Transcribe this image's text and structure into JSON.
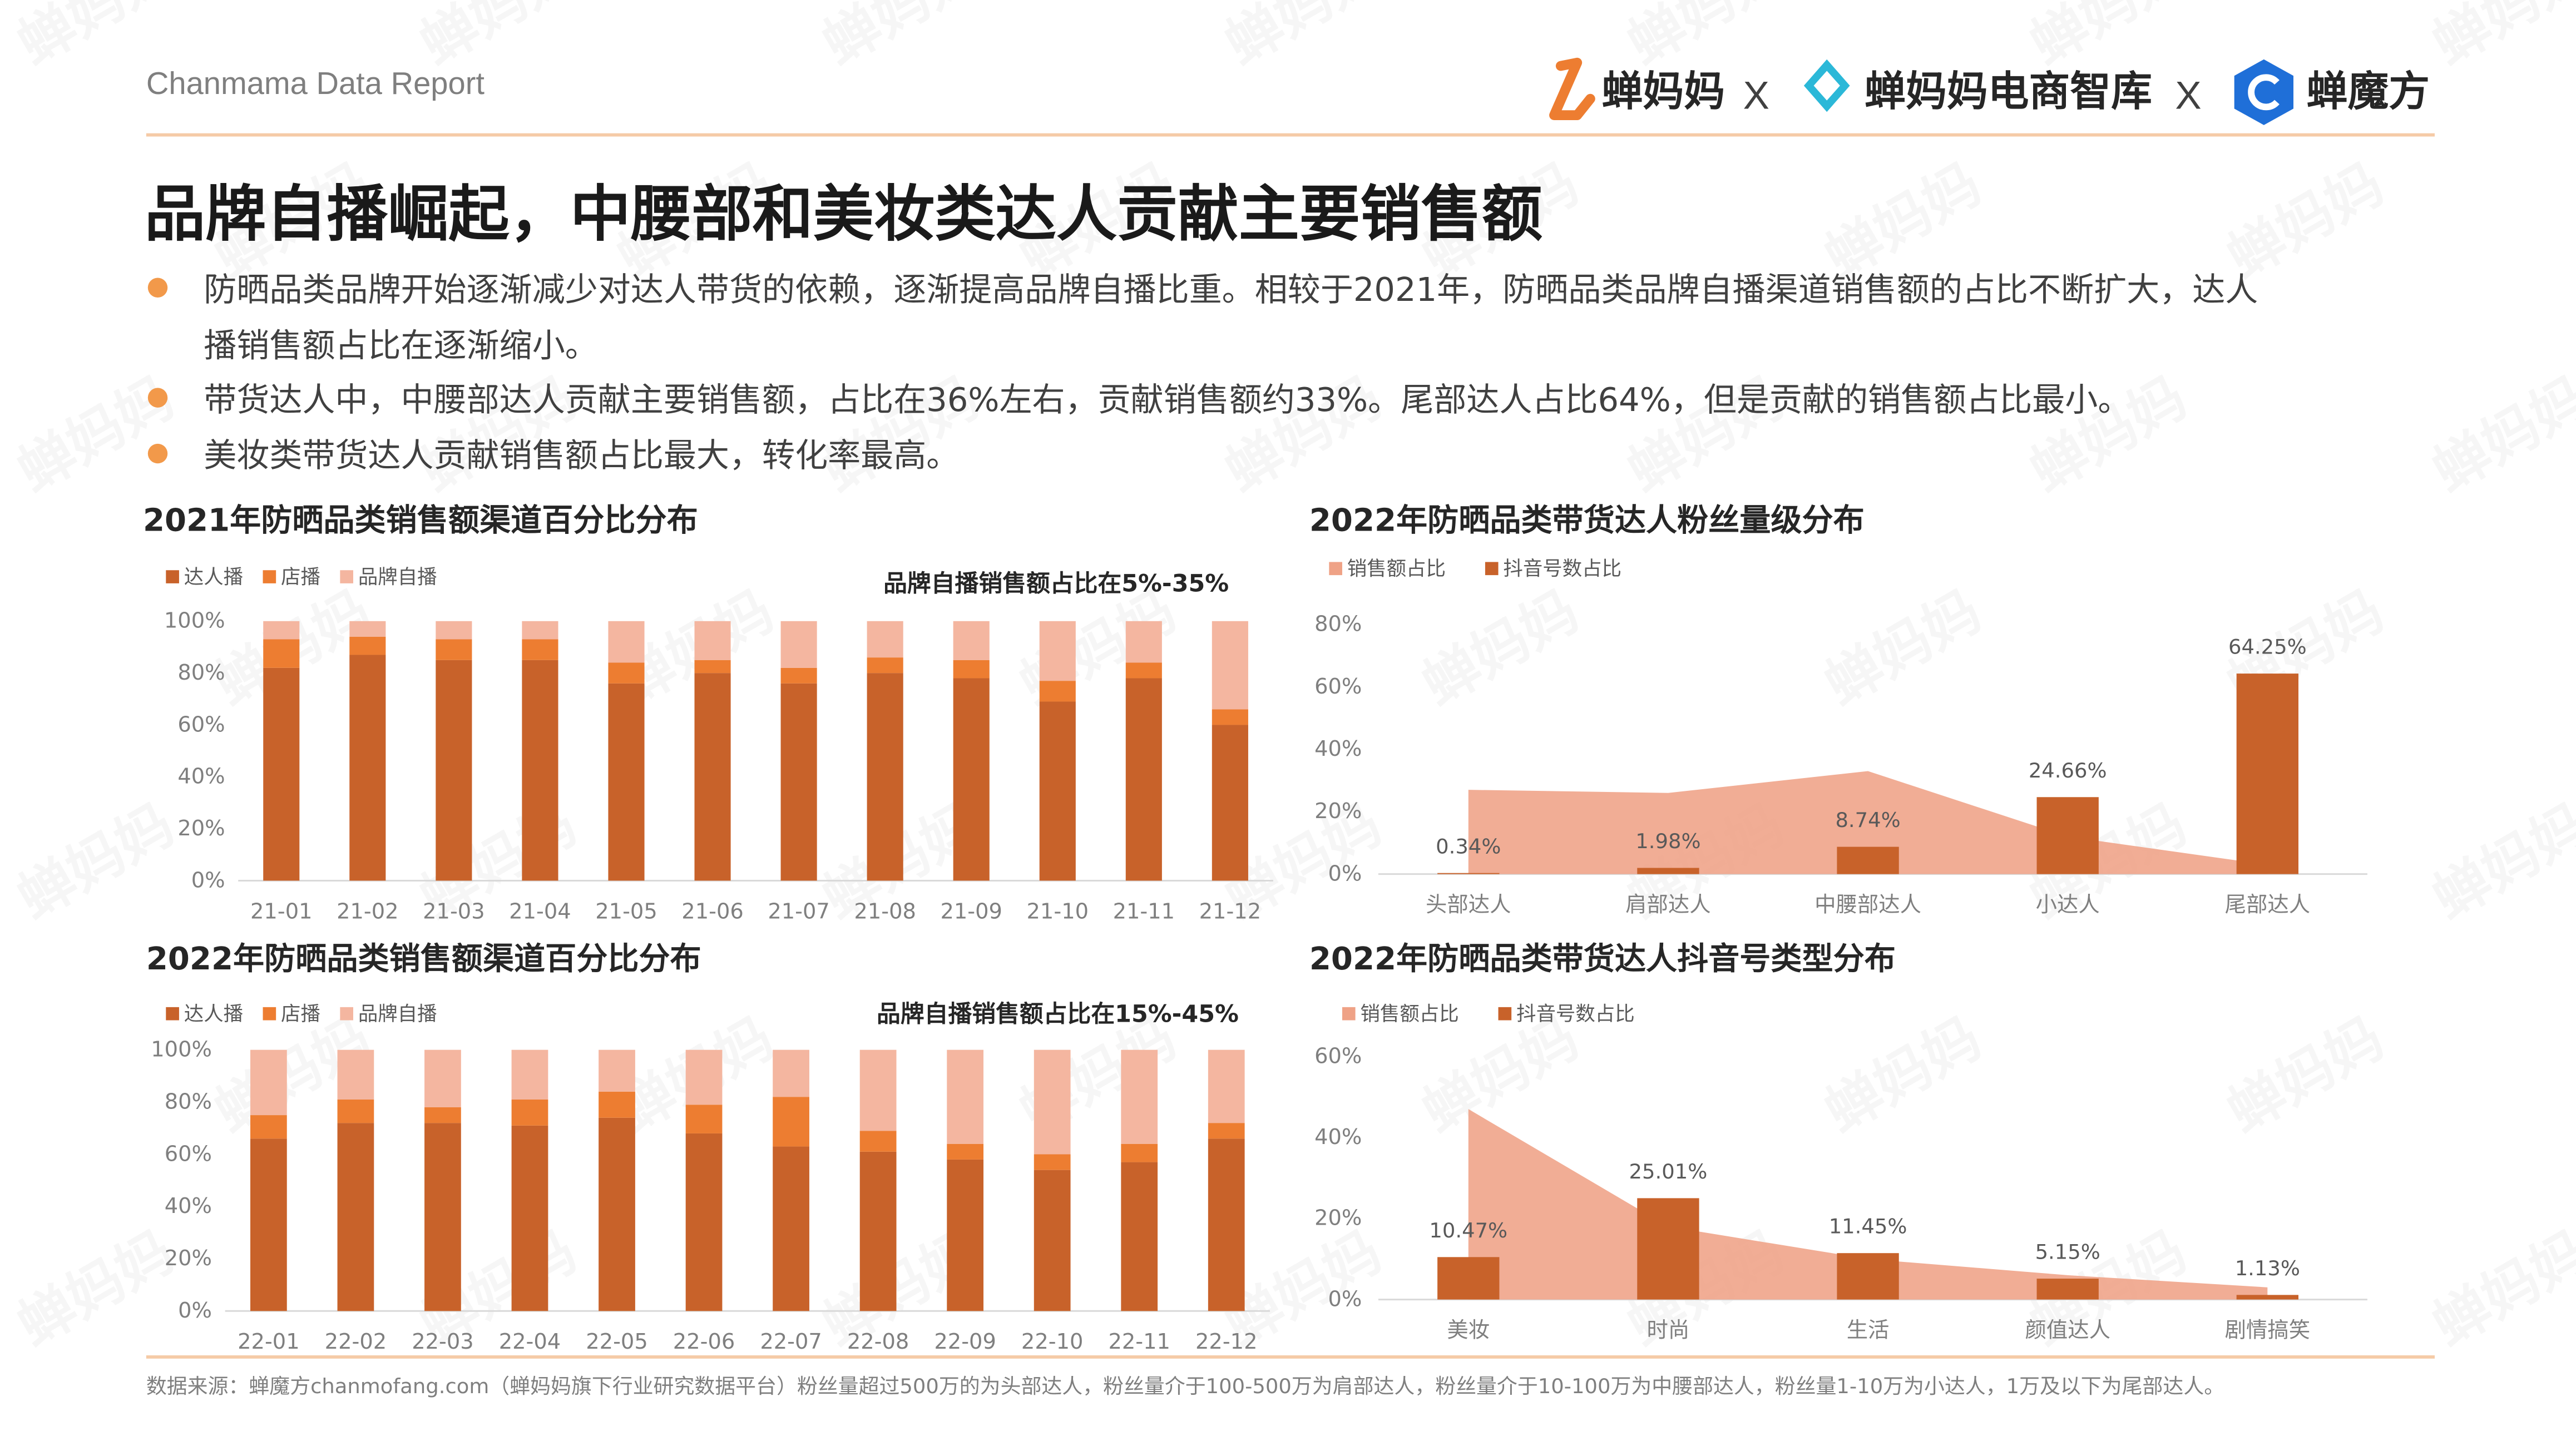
{
  "header": {
    "report_label": "Chanmama Data Report",
    "brands": [
      "蝉妈妈",
      "蝉妈妈电商智库",
      "蝉魔方"
    ],
    "separator": "X"
  },
  "title": "品牌自播崛起，中腰部和美妆类达人贡献主要销售额",
  "bullets": [
    [
      "防晒品类品牌开始逐渐减少对达人带货的依赖，逐渐提高品牌自播比重。相较于2021年，防晒品类品牌自播渠道销售额的占比不断扩大，达人",
      "播销售额占比在逐渐缩小。"
    ],
    [
      "带货达人中，中腰部达人贡献主要销售额，占比在36%左右，贡献销售额约33%。尾部达人占比64%，但是贡献的销售额占比最小。"
    ],
    [
      "美妆类带货达人贡献销售额占比最大，转化率最高。"
    ]
  ],
  "footer": "数据来源：蝉魔方chanmofang.com（蝉妈妈旗下行业研究数据平台）粉丝量超过500万的为头部达人，粉丝量介于100-500万为肩部达人，粉丝量介于10-100万为中腰部达人，粉丝量1-10万为小达人，1万及以下为尾部达人。",
  "watermark": "蝉妈妈",
  "colors": {
    "accent": "#F2994A",
    "dark_orange": "#C8622A",
    "mid_orange": "#ED7D31",
    "light_salmon": "#F4B6A0",
    "area_salmon": "#EFA286",
    "text": "#262626",
    "muted": "#595959",
    "axis": "#7f7f7f",
    "rule": "#F5CBA7"
  },
  "chart_data": [
    {
      "id": "c1",
      "type": "bar",
      "stacked": true,
      "title": "2021年防晒品类销售额渠道百分比分布",
      "annotation": "品牌自播销售额占比在5%-35%",
      "categories": [
        "21-01",
        "21-02",
        "21-03",
        "21-04",
        "21-05",
        "21-06",
        "21-07",
        "21-08",
        "21-09",
        "21-10",
        "21-11",
        "21-12"
      ],
      "series": [
        {
          "name": "达人播",
          "values": [
            82,
            87,
            85,
            85,
            76,
            80,
            76,
            80,
            78,
            69,
            78,
            60
          ]
        },
        {
          "name": "店播",
          "values": [
            11,
            7,
            8,
            8,
            8,
            5,
            6,
            6,
            7,
            8,
            6,
            6
          ]
        },
        {
          "name": "品牌自播",
          "values": [
            7,
            6,
            7,
            7,
            16,
            15,
            18,
            14,
            15,
            23,
            16,
            34
          ]
        }
      ],
      "ylim": [
        0,
        100
      ],
      "yticks": [
        "0%",
        "20%",
        "40%",
        "60%",
        "80%",
        "100%"
      ],
      "legend": "top-left"
    },
    {
      "id": "c2",
      "type": "bar",
      "stacked": true,
      "title": "2022年防晒品类销售额渠道百分比分布",
      "annotation": "品牌自播销售额占比在15%-45%",
      "categories": [
        "22-01",
        "22-02",
        "22-03",
        "22-04",
        "22-05",
        "22-06",
        "22-07",
        "22-08",
        "22-09",
        "22-10",
        "22-11",
        "22-12"
      ],
      "series": [
        {
          "name": "达人播",
          "values": [
            66,
            72,
            72,
            71,
            74,
            68,
            63,
            61,
            58,
            54,
            57,
            66
          ]
        },
        {
          "name": "店播",
          "values": [
            9,
            9,
            6,
            10,
            10,
            11,
            19,
            8,
            6,
            6,
            7,
            6
          ]
        },
        {
          "name": "品牌自播",
          "values": [
            25,
            19,
            22,
            19,
            16,
            21,
            18,
            31,
            36,
            40,
            36,
            28
          ]
        }
      ],
      "ylim": [
        0,
        100
      ],
      "yticks": [
        "0%",
        "20%",
        "40%",
        "60%",
        "80%",
        "100%"
      ],
      "legend": "top-left"
    },
    {
      "id": "c3",
      "type": "bar",
      "title": "2022年防晒品类带货达人粉丝量级分布",
      "categories": [
        "头部达人",
        "肩部达人",
        "中腰部达人",
        "小达人",
        "尾部达人"
      ],
      "series": [
        {
          "name": "销售额占比",
          "chart": "area",
          "values": [
            27,
            26,
            33,
            12,
            3
          ]
        },
        {
          "name": "抖音号数占比",
          "chart": "bar",
          "values": [
            0.34,
            1.98,
            8.74,
            24.66,
            64.25
          ]
        }
      ],
      "labels": [
        "0.34%",
        "1.98%",
        "8.74%",
        "24.66%",
        "64.25%"
      ],
      "ylim": [
        0,
        80
      ],
      "yticks": [
        "0%",
        "20%",
        "40%",
        "60%",
        "80%"
      ],
      "legend": "top-left"
    },
    {
      "id": "c4",
      "type": "bar",
      "title": "2022年防晒品类带货达人抖音号类型分布",
      "categories": [
        "美妆",
        "时尚",
        "生活",
        "颜值达人",
        "剧情搞笑"
      ],
      "series": [
        {
          "name": "销售额占比",
          "chart": "area",
          "values": [
            47,
            18,
            10,
            6,
            3
          ]
        },
        {
          "name": "抖音号数占比",
          "chart": "bar",
          "values": [
            10.47,
            25.01,
            11.45,
            5.15,
            1.13
          ]
        }
      ],
      "labels": [
        "10.47%",
        "25.01%",
        "11.45%",
        "5.15%",
        "1.13%"
      ],
      "ylim": [
        0,
        60
      ],
      "yticks": [
        "0%",
        "20%",
        "40%",
        "60%"
      ],
      "legend": "top-left"
    }
  ]
}
